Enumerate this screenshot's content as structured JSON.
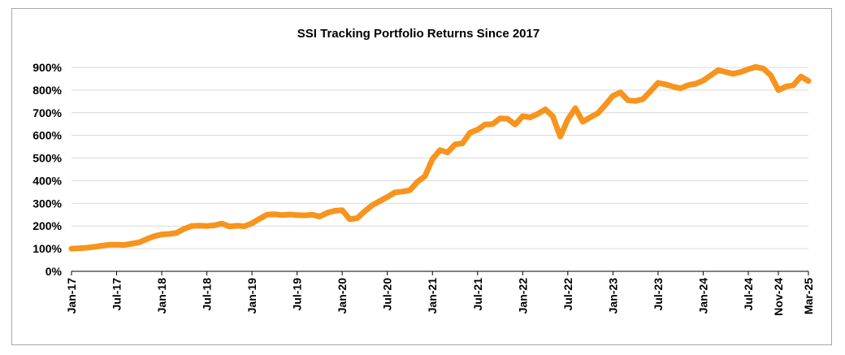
{
  "chart_data": {
    "type": "line",
    "title": "SSI Tracking Portfolio Returns Since 2017",
    "xlabel": "",
    "ylabel": "",
    "ylim": [
      0,
      900
    ],
    "y_ticks": [
      "0%",
      "100%",
      "200%",
      "300%",
      "400%",
      "500%",
      "600%",
      "700%",
      "800%",
      "900%"
    ],
    "x_tick_labels": [
      "Jan-17",
      "Jul-17",
      "Jan-18",
      "Jul-18",
      "Jan-19",
      "Jul-19",
      "Jan-20",
      "Jul-20",
      "Jan-21",
      "Jul-21",
      "Jan-22",
      "Jul-22",
      "Jan-23",
      "Jul-23",
      "Jan-24",
      "Jul-24",
      "Nov-24",
      "Mar-25"
    ],
    "grid": true,
    "legend": "none",
    "line_color": "#f7941d",
    "x": [
      "Jan-17",
      "Feb-17",
      "Mar-17",
      "Apr-17",
      "May-17",
      "Jun-17",
      "Jul-17",
      "Aug-17",
      "Sep-17",
      "Oct-17",
      "Nov-17",
      "Dec-17",
      "Jan-18",
      "Feb-18",
      "Mar-18",
      "Apr-18",
      "May-18",
      "Jun-18",
      "Jul-18",
      "Aug-18",
      "Sep-18",
      "Oct-18",
      "Nov-18",
      "Dec-18",
      "Jan-19",
      "Feb-19",
      "Mar-19",
      "Apr-19",
      "May-19",
      "Jun-19",
      "Jul-19",
      "Aug-19",
      "Sep-19",
      "Oct-19",
      "Nov-19",
      "Dec-19",
      "Jan-20",
      "Feb-20",
      "Mar-20",
      "Apr-20",
      "May-20",
      "Jun-20",
      "Jul-20",
      "Aug-20",
      "Sep-20",
      "Oct-20",
      "Nov-20",
      "Dec-20",
      "Jan-21",
      "Feb-21",
      "Mar-21",
      "Apr-21",
      "May-21",
      "Jun-21",
      "Jul-21",
      "Aug-21",
      "Sep-21",
      "Oct-21",
      "Nov-21",
      "Dec-21",
      "Jan-22",
      "Feb-22",
      "Mar-22",
      "Apr-22",
      "May-22",
      "Jun-22",
      "Jul-22",
      "Aug-22",
      "Sep-22",
      "Oct-22",
      "Nov-22",
      "Dec-22",
      "Jan-23",
      "Feb-23",
      "Mar-23",
      "Apr-23",
      "May-23",
      "Jun-23",
      "Jul-23",
      "Aug-23",
      "Sep-23",
      "Oct-23",
      "Nov-23",
      "Dec-23",
      "Jan-24",
      "Feb-24",
      "Mar-24",
      "Apr-24",
      "May-24",
      "Jun-24",
      "Jul-24",
      "Aug-24",
      "Sep-24",
      "Oct-24",
      "Nov-24",
      "Dec-24",
      "Jan-25",
      "Feb-25",
      "Mar-25"
    ],
    "values": [
      100,
      102,
      104,
      108,
      113,
      117,
      118,
      116,
      122,
      128,
      142,
      155,
      163,
      165,
      170,
      188,
      200,
      202,
      200,
      203,
      211,
      198,
      201,
      199,
      212,
      232,
      250,
      252,
      248,
      251,
      248,
      247,
      250,
      242,
      258,
      267,
      270,
      230,
      235,
      265,
      292,
      310,
      328,
      348,
      352,
      358,
      395,
      420,
      495,
      535,
      525,
      560,
      565,
      612,
      625,
      648,
      650,
      675,
      673,
      648,
      685,
      680,
      695,
      715,
      685,
      595,
      670,
      720,
      660,
      680,
      698,
      735,
      775,
      790,
      755,
      752,
      760,
      795,
      832,
      825,
      815,
      808,
      822,
      828,
      842,
      865,
      888,
      880,
      872,
      880,
      892,
      902,
      895,
      865,
      800,
      815,
      822,
      860,
      840
    ]
  }
}
